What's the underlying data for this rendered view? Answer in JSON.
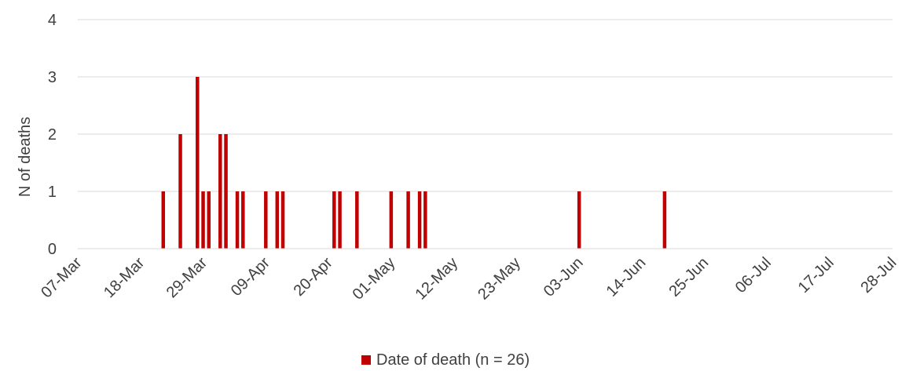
{
  "chart_data": {
    "type": "bar",
    "title": "",
    "xlabel": "",
    "ylabel": "N of deaths",
    "ylim": [
      0,
      4
    ],
    "yticks": [
      0,
      1,
      2,
      3,
      4
    ],
    "xlim": [
      "2020-03-07",
      "2020-07-28"
    ],
    "xtick_dates": [
      "2020-03-07",
      "2020-03-18",
      "2020-03-29",
      "2020-04-09",
      "2020-04-20",
      "2020-05-01",
      "2020-05-12",
      "2020-05-23",
      "2020-06-03",
      "2020-06-14",
      "2020-06-25",
      "2020-07-06",
      "2020-07-17",
      "2020-07-28"
    ],
    "xtick_labels": [
      "07-Mar",
      "18-Mar",
      "29-Mar",
      "09-Apr",
      "20-Apr",
      "01-May",
      "12-May",
      "23-May",
      "03-Jun",
      "14-Jun",
      "25-Jun",
      "06-Jul",
      "17-Jul",
      "28-Jul"
    ],
    "grid": true,
    "legend_position": "bottom",
    "series": [
      {
        "name": "Date of death (n = 26)",
        "color": "#c00000",
        "points": [
          {
            "date": "2020-03-22",
            "value": 1
          },
          {
            "date": "2020-03-25",
            "value": 2
          },
          {
            "date": "2020-03-28",
            "value": 3
          },
          {
            "date": "2020-03-29",
            "value": 1
          },
          {
            "date": "2020-03-30",
            "value": 1
          },
          {
            "date": "2020-04-01",
            "value": 2
          },
          {
            "date": "2020-04-02",
            "value": 2
          },
          {
            "date": "2020-04-04",
            "value": 1
          },
          {
            "date": "2020-04-05",
            "value": 1
          },
          {
            "date": "2020-04-09",
            "value": 1
          },
          {
            "date": "2020-04-11",
            "value": 1
          },
          {
            "date": "2020-04-12",
            "value": 1
          },
          {
            "date": "2020-04-21",
            "value": 1
          },
          {
            "date": "2020-04-22",
            "value": 1
          },
          {
            "date": "2020-04-25",
            "value": 1
          },
          {
            "date": "2020-05-01",
            "value": 1
          },
          {
            "date": "2020-05-04",
            "value": 1
          },
          {
            "date": "2020-05-06",
            "value": 1
          },
          {
            "date": "2020-05-07",
            "value": 1
          },
          {
            "date": "2020-06-03",
            "value": 1
          },
          {
            "date": "2020-06-18",
            "value": 1
          }
        ]
      }
    ]
  }
}
